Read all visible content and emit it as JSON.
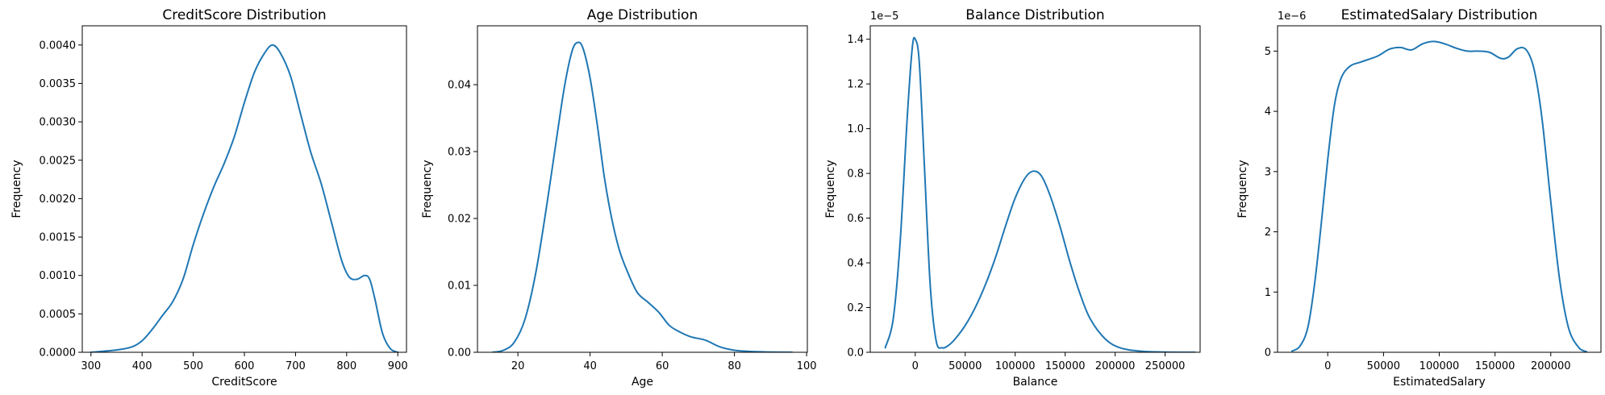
{
  "chart_data": [
    {
      "type": "line",
      "title": "CreditScore Distribution",
      "xlabel": "CreditScore",
      "ylabel": "Frequency",
      "offset_text": "",
      "xlim": [
        283,
        917
      ],
      "ylim": [
        0,
        0.00425
      ],
      "xticks": [
        300,
        400,
        500,
        600,
        700,
        800,
        900
      ],
      "xtick_labels": [
        "300",
        "400",
        "500",
        "600",
        "700",
        "800",
        "900"
      ],
      "yticks": [
        0,
        0.0005,
        0.001,
        0.0015,
        0.002,
        0.0025,
        0.003,
        0.0035,
        0.004
      ],
      "ytick_labels": [
        "0.0000",
        "0.0005",
        "0.0010",
        "0.0015",
        "0.0020",
        "0.0025",
        "0.0030",
        "0.0035",
        "0.0040"
      ],
      "color": "#1f77b4",
      "series": [
        {
          "x": [
            300,
            350,
            380,
            400,
            420,
            440,
            460,
            480,
            500,
            520,
            540,
            560,
            580,
            600,
            620,
            640,
            655,
            670,
            690,
            710,
            730,
            750,
            770,
            790,
            805,
            820,
            835,
            845,
            855,
            870,
            885,
            900
          ],
          "y": [
            0.0,
            3e-05,
            7e-05,
            0.00015,
            0.0003,
            0.00048,
            0.00066,
            0.00095,
            0.0014,
            0.0018,
            0.00215,
            0.00245,
            0.0028,
            0.00325,
            0.00365,
            0.0039,
            0.004,
            0.0039,
            0.0036,
            0.0031,
            0.0026,
            0.0022,
            0.0017,
            0.0012,
            0.00098,
            0.00095,
            0.001,
            0.00095,
            0.0007,
            0.00025,
            5e-05,
            0.0
          ]
        }
      ]
    },
    {
      "type": "line",
      "title": "Age Distribution",
      "xlabel": "Age",
      "ylabel": "Frequency",
      "offset_text": "",
      "xlim": [
        8.8,
        100.2
      ],
      "ylim": [
        0,
        0.0488
      ],
      "xticks": [
        20,
        40,
        60,
        80,
        100
      ],
      "xtick_labels": [
        "20",
        "40",
        "60",
        "80",
        "100"
      ],
      "yticks": [
        0,
        0.01,
        0.02,
        0.03,
        0.04
      ],
      "ytick_labels": [
        "0.00",
        "0.01",
        "0.02",
        "0.03",
        "0.04"
      ],
      "color": "#1f77b4",
      "series": [
        {
          "x": [
            13,
            16,
            19,
            22,
            25,
            28,
            31,
            33,
            35,
            36.5,
            38,
            40,
            42,
            44,
            46,
            48,
            50,
            53,
            56,
            59,
            62,
            65,
            68,
            72,
            76,
            80,
            85,
            90,
            96
          ],
          "y": [
            0.0,
            0.0003,
            0.0015,
            0.005,
            0.012,
            0.022,
            0.033,
            0.04,
            0.045,
            0.0463,
            0.0455,
            0.041,
            0.034,
            0.026,
            0.02,
            0.0155,
            0.0125,
            0.009,
            0.0075,
            0.006,
            0.004,
            0.003,
            0.0023,
            0.0018,
            0.0008,
            0.0003,
            0.0001,
            3e-05,
            0.0
          ]
        }
      ]
    },
    {
      "type": "line",
      "title": "Balance Distribution",
      "xlabel": "Balance",
      "ylabel": "Frequency",
      "offset_text": "1e−5",
      "xlim": [
        -45000,
        285000
      ],
      "ylim": [
        0,
        1.46
      ],
      "xticks": [
        0,
        50000,
        100000,
        150000,
        200000,
        250000
      ],
      "xtick_labels": [
        "0",
        "50000",
        "100000",
        "150000",
        "200000",
        "250000"
      ],
      "yticks": [
        0,
        0.2,
        0.4,
        0.6,
        0.8,
        1.0,
        1.2,
        1.4
      ],
      "ytick_labels": [
        "0.0",
        "0.2",
        "0.4",
        "0.6",
        "0.8",
        "1.0",
        "1.2",
        "1.4"
      ],
      "color": "#1f77b4",
      "series": [
        {
          "x": [
            -30000,
            -22000,
            -15000,
            -8000,
            -3000,
            0,
            4000,
            9000,
            15000,
            21000,
            27000,
            33000,
            40000,
            50000,
            60000,
            70000,
            80000,
            90000,
            100000,
            110000,
            118000,
            126000,
            135000,
            145000,
            155000,
            165000,
            175000,
            190000,
            205000,
            225000,
            250000,
            280000
          ],
          "y": [
            0.02,
            0.15,
            0.5,
            1.05,
            1.36,
            1.4,
            1.3,
            0.85,
            0.3,
            0.05,
            0.02,
            0.03,
            0.06,
            0.12,
            0.2,
            0.3,
            0.42,
            0.56,
            0.69,
            0.78,
            0.81,
            0.79,
            0.7,
            0.56,
            0.4,
            0.26,
            0.15,
            0.06,
            0.02,
            0.005,
            0.001,
            0.0
          ]
        }
      ]
    },
    {
      "type": "line",
      "title": "EstimatedSalary Distribution",
      "xlabel": "EstimatedSalary",
      "ylabel": "Frequency",
      "offset_text": "1e−6",
      "xlim": [
        -45000,
        245000
      ],
      "ylim": [
        0,
        5.42
      ],
      "xticks": [
        0,
        50000,
        100000,
        150000,
        200000
      ],
      "xtick_labels": [
        "0",
        "50000",
        "100000",
        "150000",
        "200000"
      ],
      "yticks": [
        0,
        1,
        2,
        3,
        4,
        5
      ],
      "ytick_labels": [
        "0",
        "1",
        "2",
        "3",
        "4",
        "5"
      ],
      "color": "#1f77b4",
      "series": [
        {
          "x": [
            -32000,
            -25000,
            -18000,
            -12000,
            -6000,
            0,
            6000,
            12000,
            20000,
            30000,
            45000,
            55000,
            65000,
            75000,
            85000,
            95000,
            105000,
            115000,
            125000,
            135000,
            145000,
            155000,
            162000,
            170000,
            178000,
            185000,
            192000,
            200000,
            208000,
            216000,
            225000,
            232000
          ],
          "y": [
            0.02,
            0.1,
            0.4,
            1.1,
            2.1,
            3.2,
            4.1,
            4.55,
            4.75,
            4.82,
            4.92,
            5.03,
            5.06,
            5.02,
            5.12,
            5.16,
            5.12,
            5.05,
            5.0,
            5.0,
            4.98,
            4.88,
            4.9,
            5.04,
            5.02,
            4.7,
            3.9,
            2.5,
            1.2,
            0.4,
            0.08,
            0.01
          ]
        }
      ]
    }
  ]
}
